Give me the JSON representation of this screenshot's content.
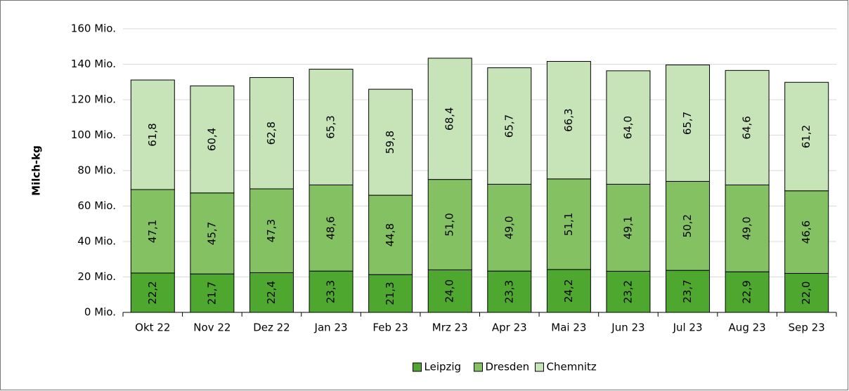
{
  "chart_data": {
    "type": "stacked_bar",
    "y_label": "Milch-kg",
    "categories": [
      "Okt 22",
      "Nov 22",
      "Dez 22",
      "Jan 23",
      "Feb 23",
      "Mrz 23",
      "Apr 23",
      "Mai 23",
      "Jun 23",
      "Jul 23",
      "Aug 23",
      "Sep 23"
    ],
    "series": [
      {
        "name": "Leipzig",
        "color": "#4ea72e",
        "values": [
          22.2,
          21.7,
          22.4,
          23.3,
          21.3,
          24.0,
          23.3,
          24.2,
          23.2,
          23.7,
          22.9,
          22.0
        ],
        "value_labels": [
          "22,2",
          "21,7",
          "22,4",
          "23,3",
          "21,3",
          "24,0",
          "23,3",
          "24,2",
          "23,2",
          "23,7",
          "22,9",
          "22,0"
        ]
      },
      {
        "name": "Dresden",
        "color": "#83c163",
        "values": [
          47.1,
          45.7,
          47.3,
          48.6,
          44.8,
          51.0,
          49.0,
          51.1,
          49.1,
          50.2,
          49.0,
          46.6
        ],
        "value_labels": [
          "47,1",
          "45,7",
          "47,3",
          "48,6",
          "44,8",
          "51,0",
          "49,0",
          "51,1",
          "49,1",
          "50,2",
          "49,0",
          "46,6"
        ]
      },
      {
        "name": "Chemnitz",
        "color": "#c6e4b8",
        "values": [
          61.8,
          60.4,
          62.8,
          65.3,
          59.8,
          68.4,
          65.7,
          66.3,
          64.0,
          65.7,
          64.6,
          61.2
        ],
        "value_labels": [
          "61,8",
          "60,4",
          "62,8",
          "65,3",
          "59,8",
          "68,4",
          "65,7",
          "66,3",
          "64,0",
          "65,7",
          "64,6",
          "61,2"
        ]
      }
    ],
    "ylim": [
      0,
      160
    ],
    "yticks": [
      {
        "value": 0,
        "label": "0 Mio."
      },
      {
        "value": 20,
        "label": "20 Mio."
      },
      {
        "value": 40,
        "label": "40 Mio."
      },
      {
        "value": 60,
        "label": "60 Mio."
      },
      {
        "value": 80,
        "label": "80 Mio."
      },
      {
        "value": 100,
        "label": "100 Mio."
      },
      {
        "value": 120,
        "label": "120 Mio."
      },
      {
        "value": 140,
        "label": "140 Mio."
      },
      {
        "value": 160,
        "label": "160 Mio."
      }
    ],
    "grid": true,
    "legend": "bottom"
  }
}
